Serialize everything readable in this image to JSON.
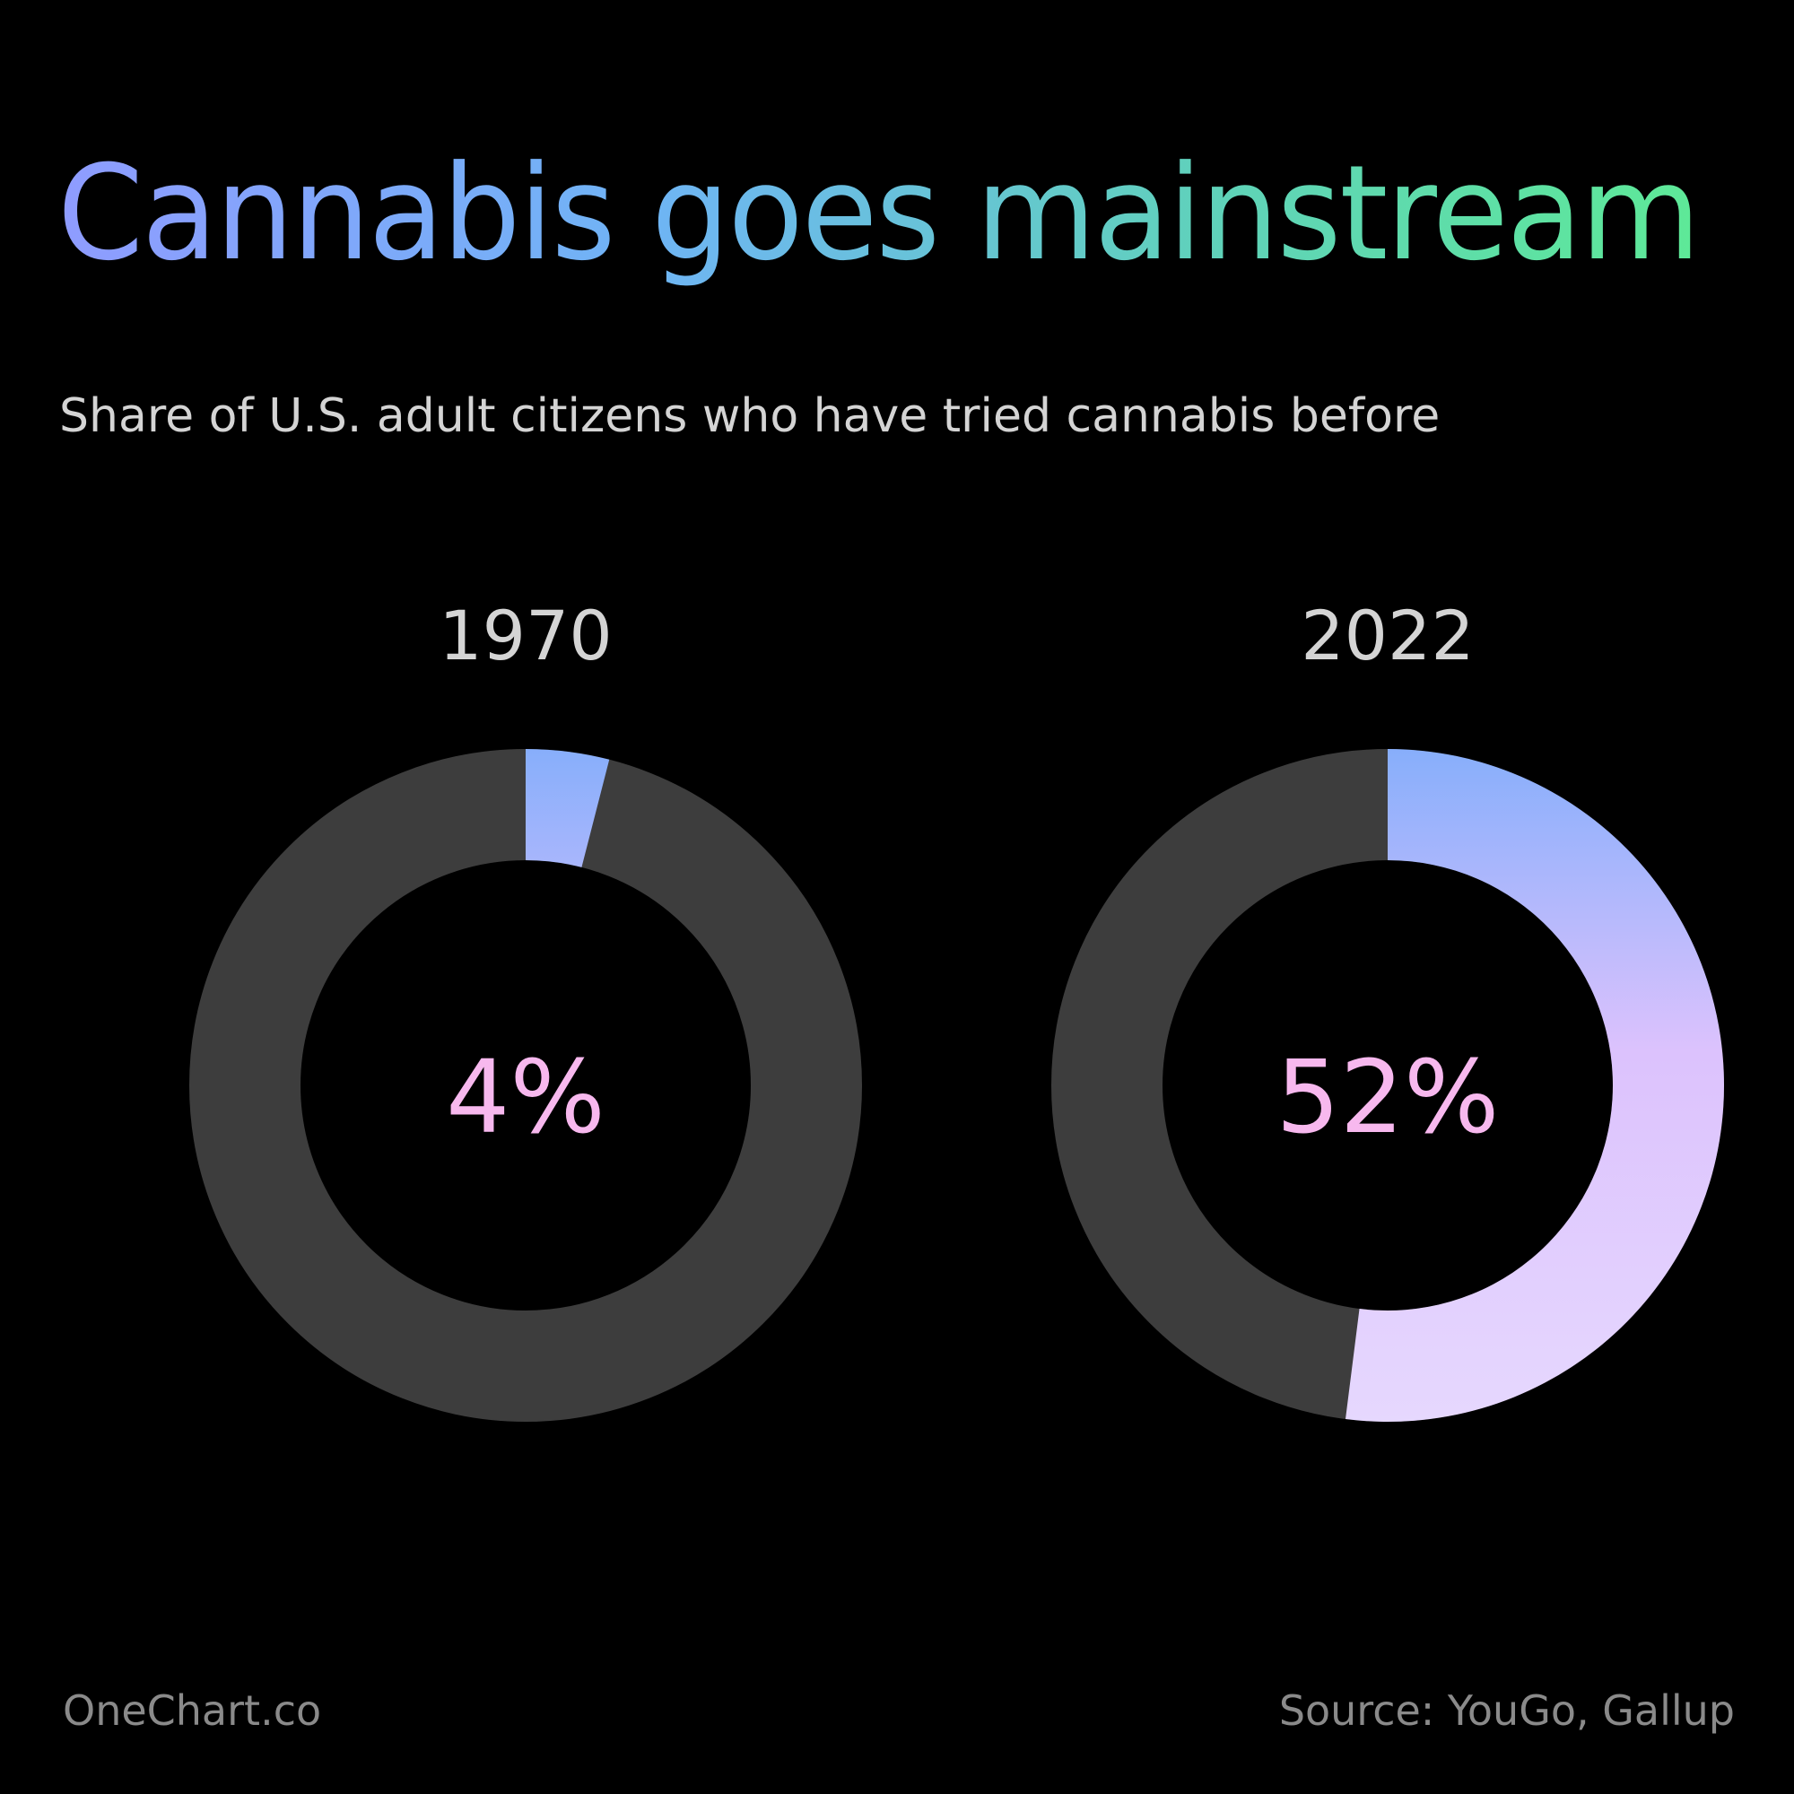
{
  "header": {
    "title": "Cannabis goes mainstream",
    "subtitle": "Share of U.S. adult citizens who have tried cannabis before"
  },
  "footer": {
    "brand": "OneChart.co",
    "source": "Source: YouGo, Gallup"
  },
  "colors": {
    "background": "#000000",
    "track": "#3d3d3d",
    "title_gradient": [
      "#8f9cff",
      "#6fb4f5",
      "#5fd3b8",
      "#5eeb95"
    ],
    "arc_gradient": [
      "#86aefb",
      "#dcc2fd",
      "#e6d8fe"
    ],
    "value_label": "#f7b8ee",
    "year_label": "#d4d4d4",
    "footer_text": "#8a8a8a"
  },
  "chart_data": {
    "type": "pie",
    "variant": "donut",
    "unit": "%",
    "charts": [
      {
        "category": "1970",
        "value": 4,
        "label": "4%"
      },
      {
        "category": "2022",
        "value": 52,
        "label": "52%"
      }
    ]
  }
}
